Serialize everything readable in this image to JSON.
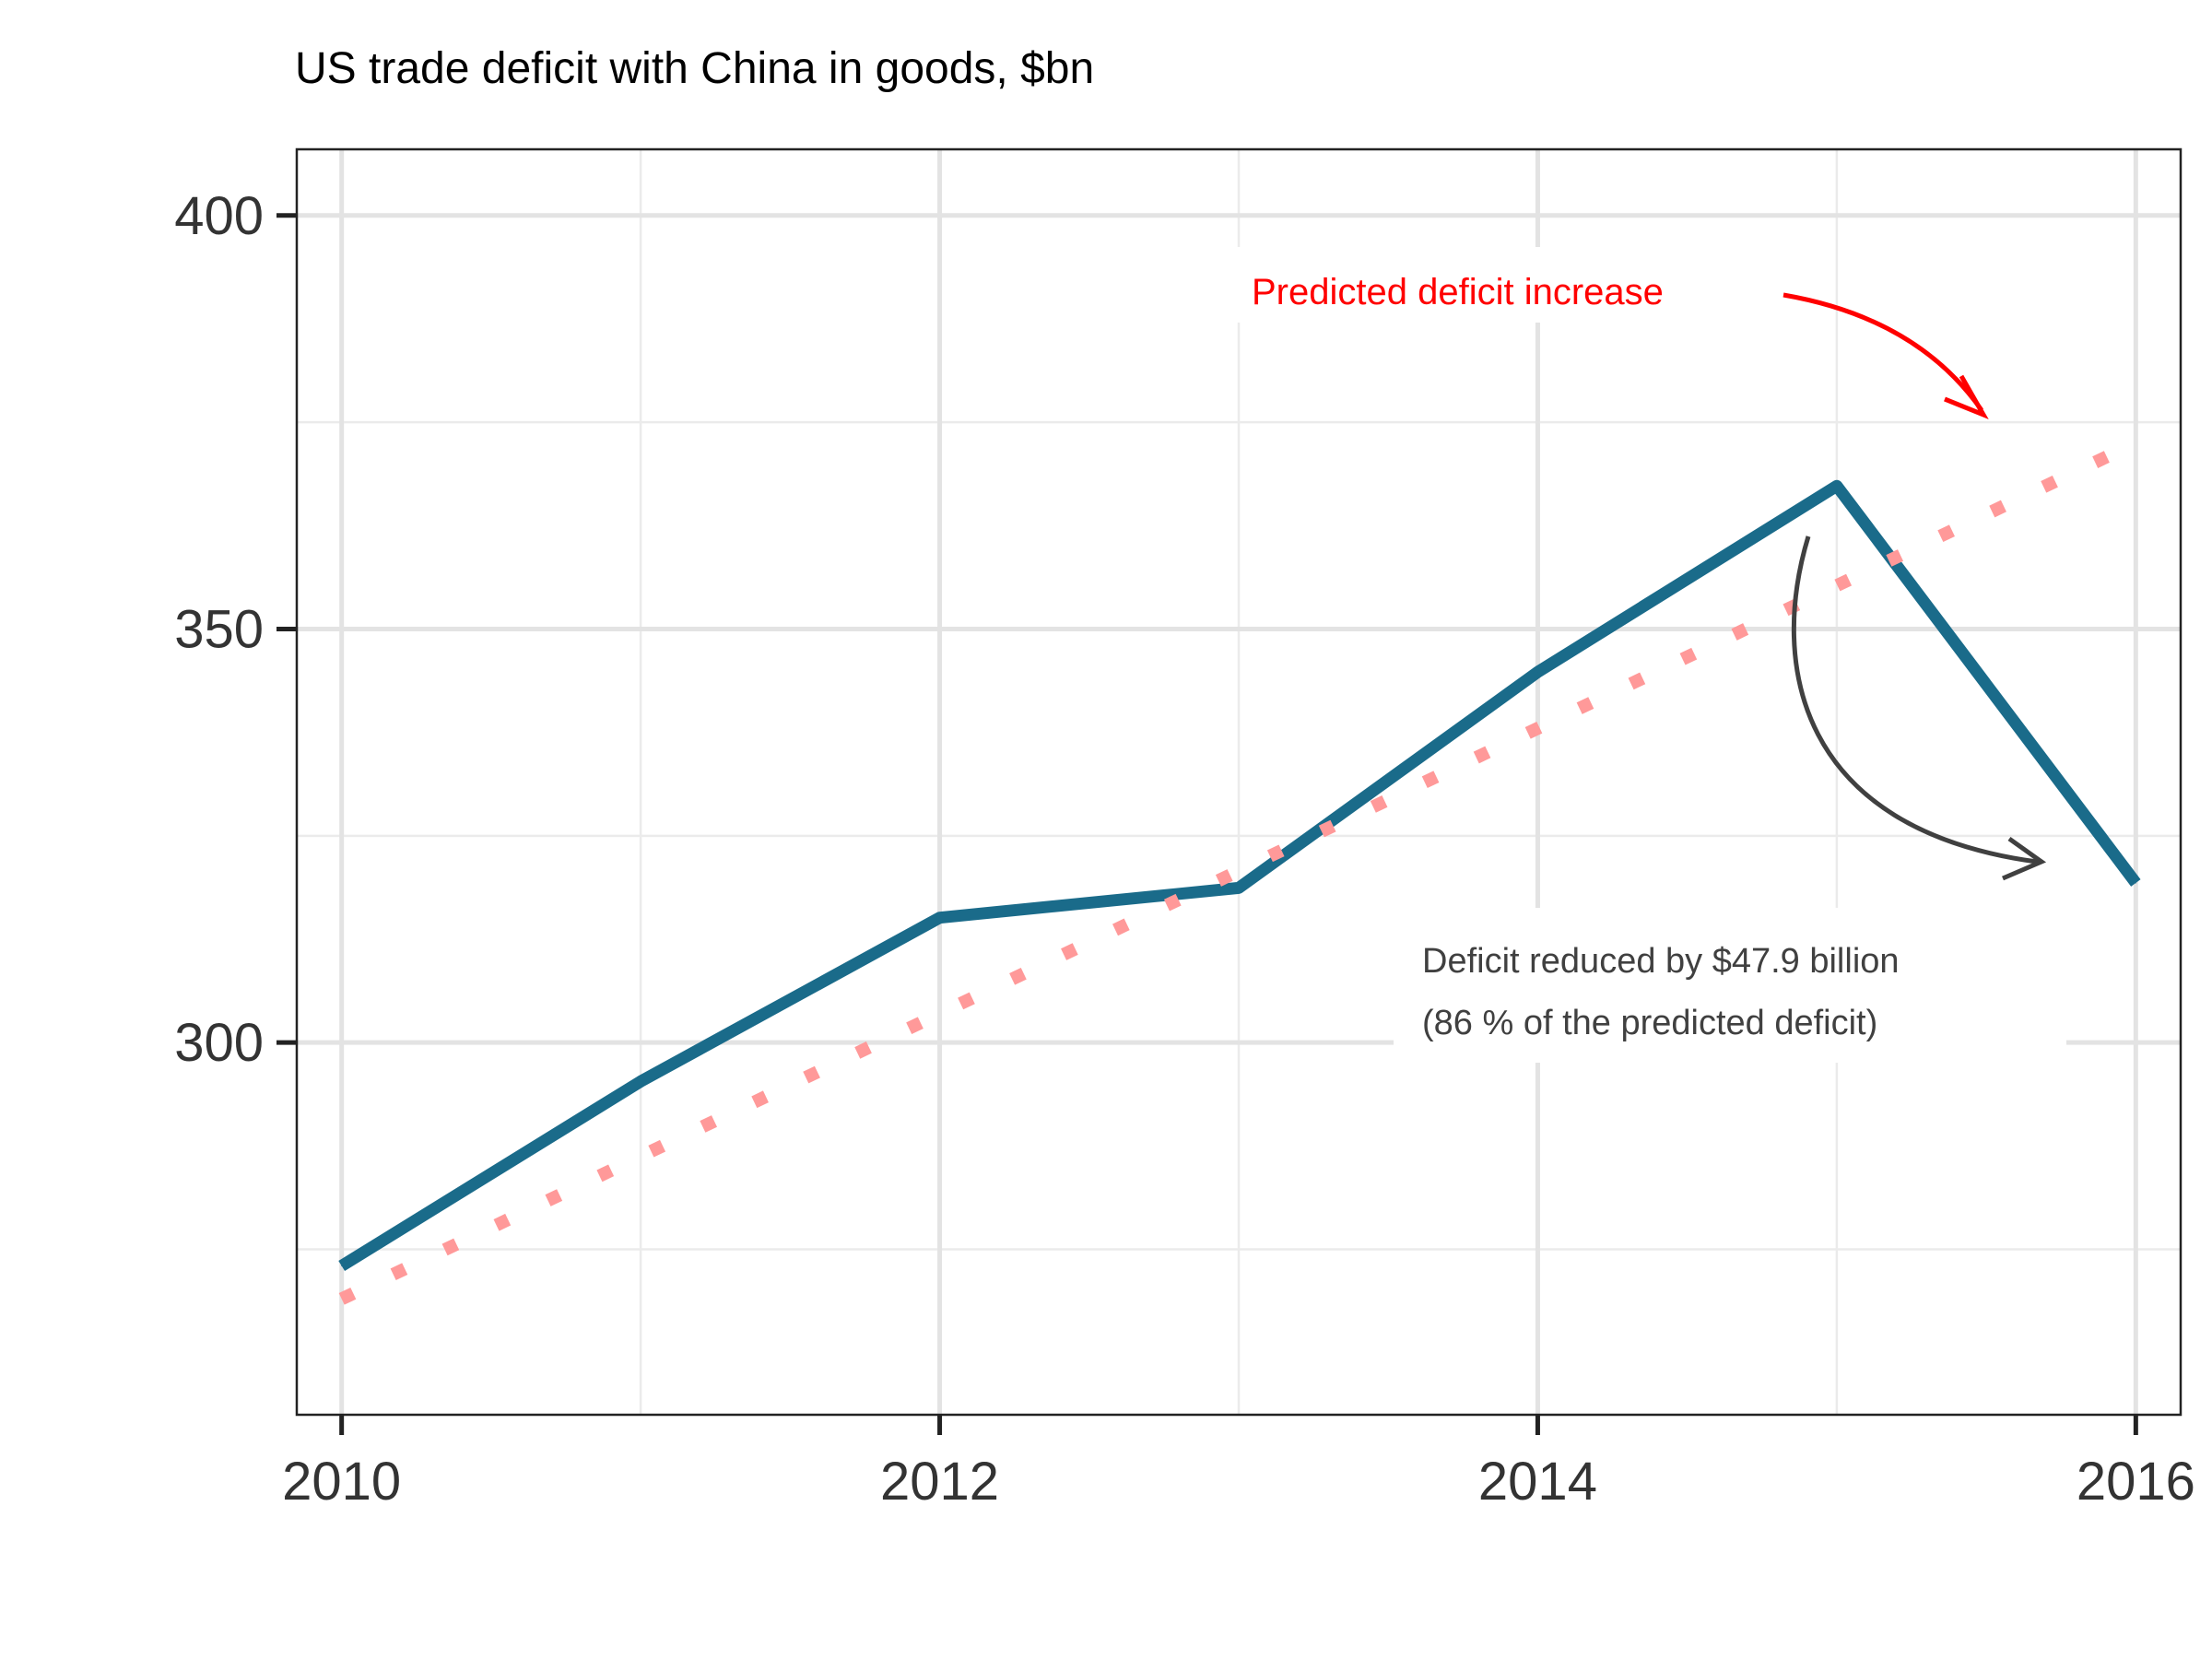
{
  "chart_data": {
    "type": "line",
    "title": "US trade deficit with China in goods, $bn",
    "xlabel": "",
    "ylabel": "",
    "xlim": [
      2009.85,
      2016.15
    ],
    "ylim": [
      255,
      408
    ],
    "x_ticks": [
      2010,
      2012,
      2014,
      2016
    ],
    "y_ticks": [
      300,
      350,
      400
    ],
    "x_minor": [
      2011,
      2013,
      2015
    ],
    "y_minor": [
      275,
      325,
      375
    ],
    "grid": true,
    "legend": "none",
    "series": [
      {
        "style": "solid",
        "color": "#1a6b8a",
        "x": [
          2010,
          2011,
          2012,
          2013,
          2014,
          2015,
          2016
        ],
        "values": [
          273.0,
          295.3,
          315.1,
          318.7,
          344.8,
          367.3,
          319.3
        ]
      },
      {
        "style": "dotted",
        "color": "#ff9999",
        "x": [
          2010,
          2016
        ],
        "values": [
          269.0,
          372.5
        ]
      }
    ],
    "annotations": [
      {
        "text": "Predicted deficit increase",
        "color": "#ff0000"
      },
      {
        "text": "Deficit reduced by $47.9 billion",
        "color": "#404040"
      },
      {
        "text": "(86 % of the predicted deficit)",
        "color": "#404040"
      }
    ]
  }
}
